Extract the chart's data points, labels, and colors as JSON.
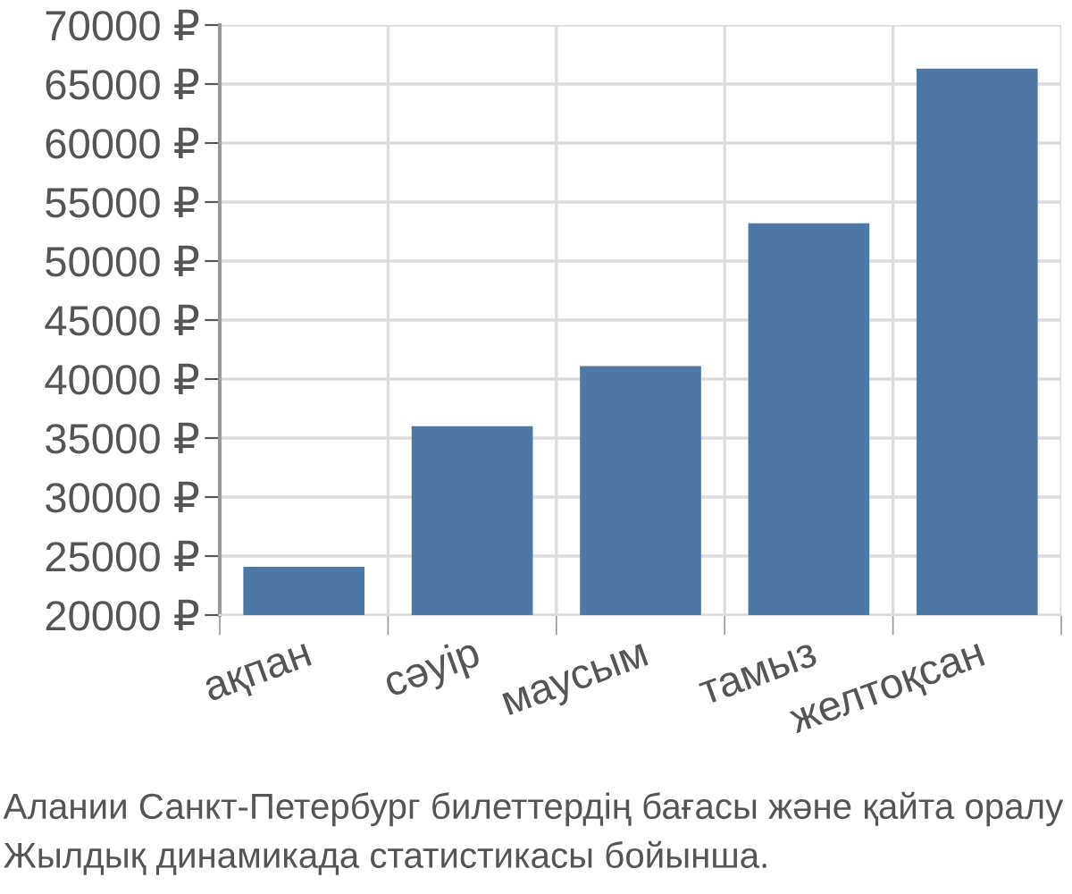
{
  "chart_data": {
    "type": "bar",
    "categories": [
      "ақпан",
      "сәуір",
      "маусым",
      "тамыз",
      "желтоқсан"
    ],
    "values": [
      24100,
      36000,
      41100,
      53200,
      66300
    ],
    "color": "#4e79a7",
    "ylim": [
      20000,
      70000
    ],
    "yticks": [
      {
        "value": 20000,
        "label": "20000 ₽"
      },
      {
        "value": 25000,
        "label": "25000 ₽"
      },
      {
        "value": 30000,
        "label": "30000 ₽"
      },
      {
        "value": 35000,
        "label": "35000 ₽"
      },
      {
        "value": 40000,
        "label": "40000 ₽"
      },
      {
        "value": 45000,
        "label": "45000 ₽"
      },
      {
        "value": 50000,
        "label": "50000 ₽"
      },
      {
        "value": 55000,
        "label": "55000 ₽"
      },
      {
        "value": 60000,
        "label": "60000 ₽"
      },
      {
        "value": 65000,
        "label": "65000 ₽"
      },
      {
        "value": 70000,
        "label": "70000 ₽"
      }
    ],
    "grid": true,
    "annotations": [
      "Алании Санкт-Петербург билеттердің бағасы және қайта оралу",
      "Жылдық динамикада статистикасы бойынша."
    ]
  }
}
